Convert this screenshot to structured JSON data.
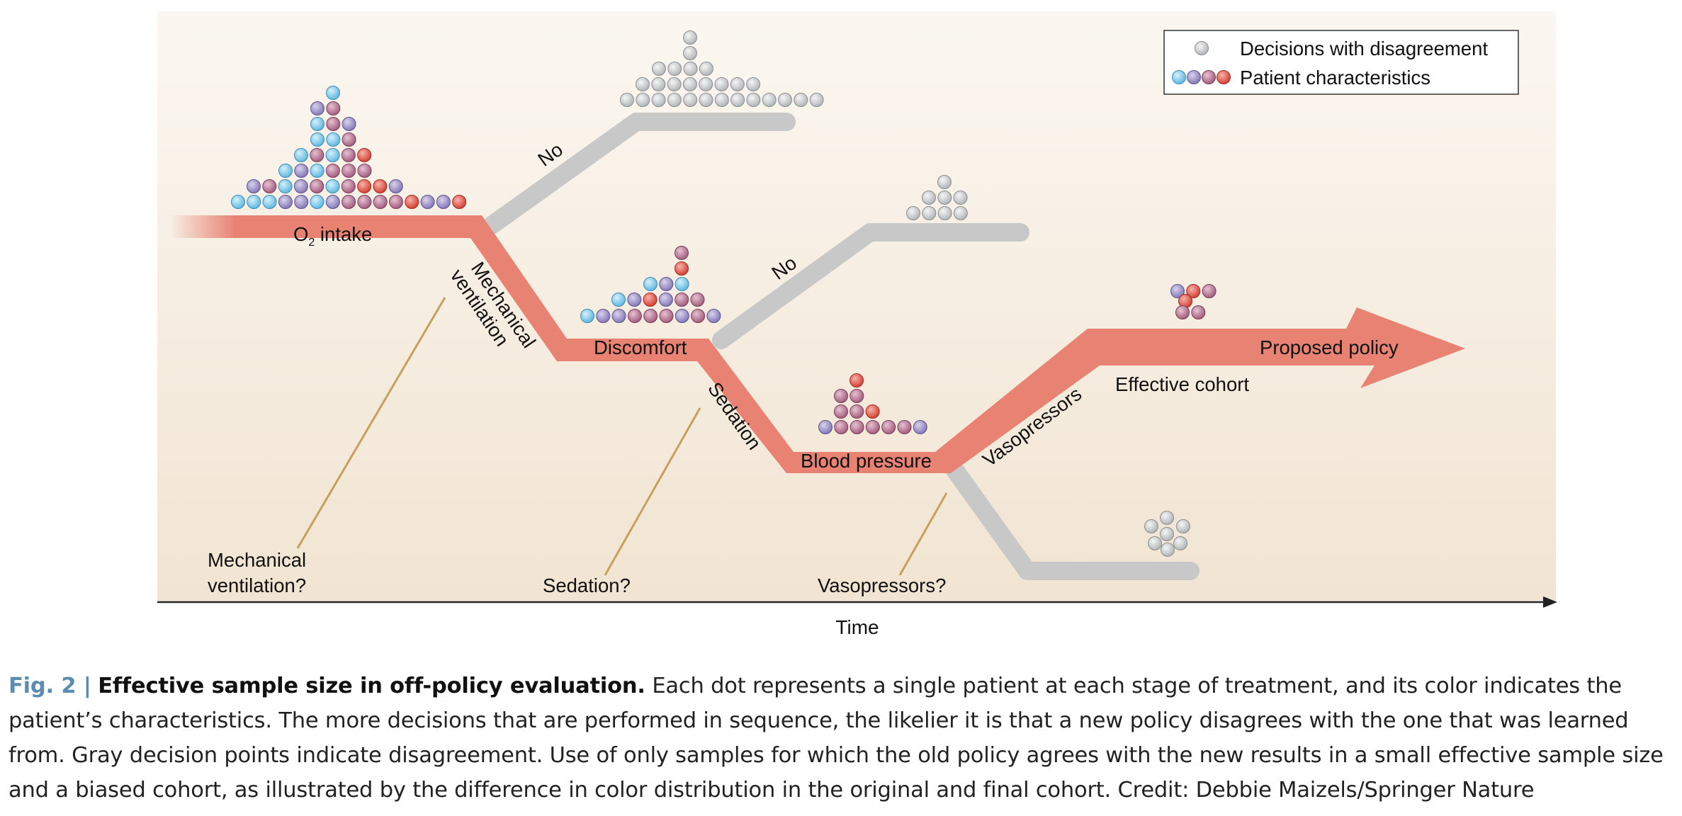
{
  "legend": {
    "disagreement_label": "Decisions with disagreement",
    "patient_label": "Patient characteristics"
  },
  "nodes": {
    "o2_intake": {
      "main": "O",
      "sub": "2",
      "rest": " intake"
    },
    "discomfort": "Discomfort",
    "blood_pressure": "Blood pressure",
    "proposed_policy": "Proposed policy",
    "effective_cohort": "Effective cohort"
  },
  "branch_labels": {
    "no_1": "No",
    "no_2": "No",
    "mechanical_ventilation_line1": "Mechanical",
    "mechanical_ventilation_line2": "ventilation",
    "sedation": "Sedation",
    "vasopressors": "Vasopressors"
  },
  "questions": {
    "mechanical_ventilation_line1": "Mechanical",
    "mechanical_ventilation_line2": "ventilation?",
    "sedation": "Sedation?",
    "vasopressors": "Vasopressors?"
  },
  "axis": {
    "x_label": "Time"
  },
  "caption": {
    "label": "Fig. 2 |",
    "title": "Effective sample size in off-policy evaluation.",
    "body": "Each dot represents a single patient at each stage of treatment, and its color indicates the patient’s characteristics. The more decisions that are performed in sequence, the likelier it is that a new policy disagrees with the one that was learned from. Gray decision points indicate disagreement. Use of only samples for which the old policy agrees with the new results in a small effective sample size and a biased cohort, as illustrated by the difference in color distribution in the original and final cohort. Credit: Debbie Maizels/Springer Nature"
  },
  "colors": {
    "policy_path": "#e88273",
    "disagreement_path": "#c8c8c8",
    "background_top": "#fbf7f1",
    "background_bottom": "#f2e5d4",
    "leader_line": "#c4a25c",
    "dot_blue": "#7ac8ea",
    "dot_purple": "#9b8fc4",
    "dot_mauve": "#b5708f",
    "dot_red": "#e2483c",
    "dot_gray": "#c8cacc"
  }
}
